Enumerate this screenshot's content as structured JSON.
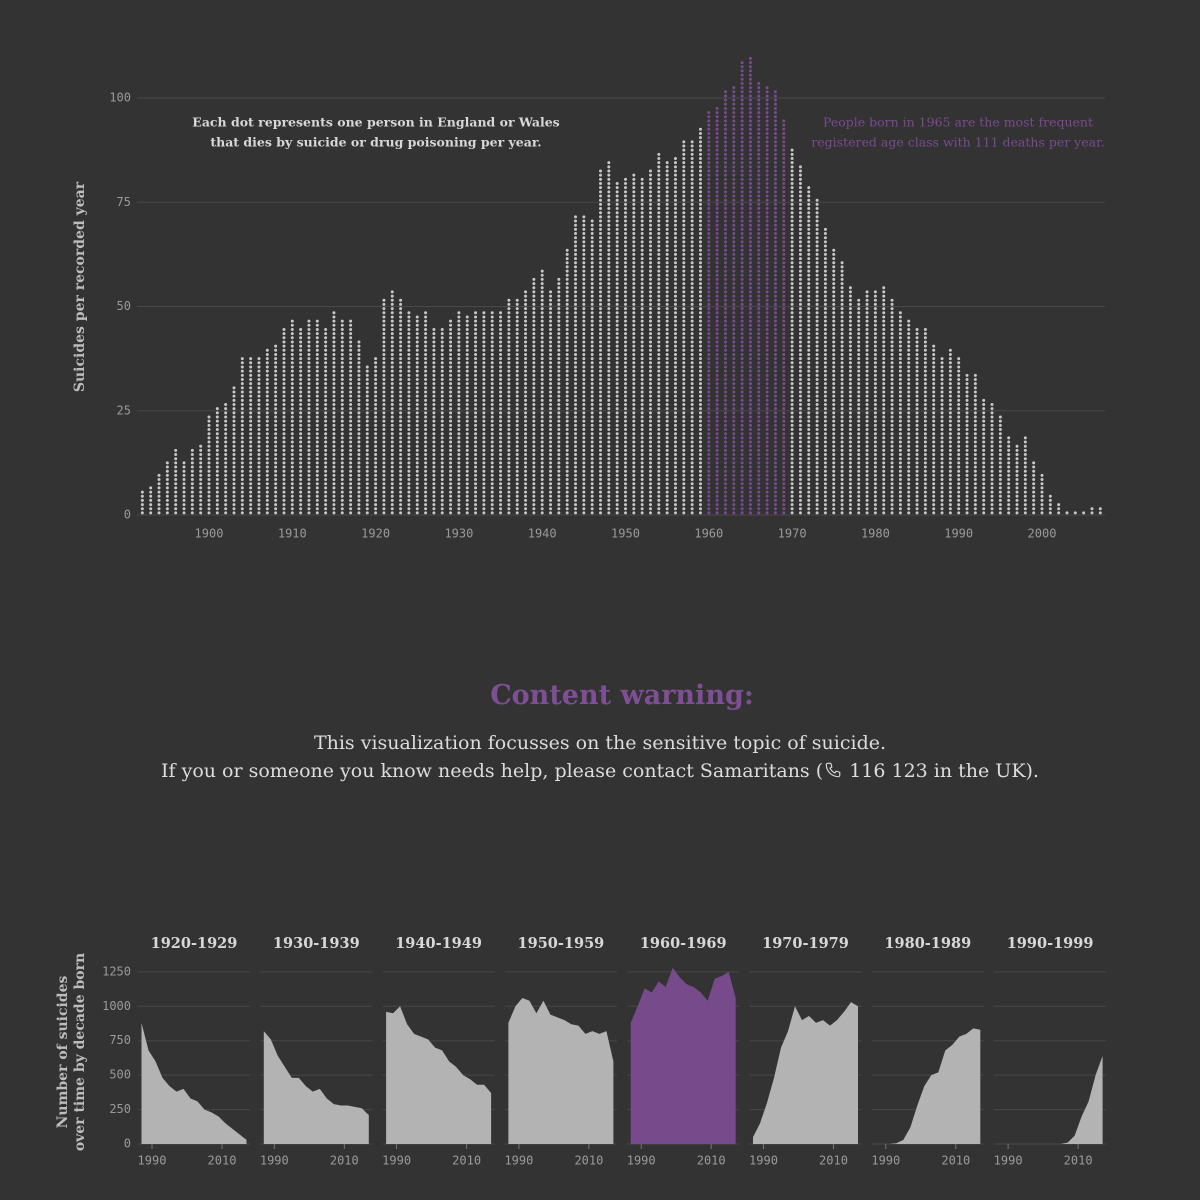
{
  "chart_data": [
    {
      "type": "dots",
      "ylabel": "Suicides per recorded year",
      "annotation_left": [
        "Each dot represents one person in England or Wales",
        "that dies by suicide or drug poisoning per year."
      ],
      "annotation_right": [
        "People born in 1965 are the most frequent",
        "registered age class with 111 deaths per year."
      ],
      "color": "#c8c8c8",
      "highlight": {
        "from": 1960,
        "to": 1969,
        "color": "#7a4a8e"
      },
      "x": [
        1892,
        1893,
        1894,
        1895,
        1896,
        1897,
        1898,
        1899,
        1900,
        1901,
        1902,
        1903,
        1904,
        1905,
        1906,
        1907,
        1908,
        1909,
        1910,
        1911,
        1912,
        1913,
        1914,
        1915,
        1916,
        1917,
        1918,
        1919,
        1920,
        1921,
        1922,
        1923,
        1924,
        1925,
        1926,
        1927,
        1928,
        1929,
        1930,
        1931,
        1932,
        1933,
        1934,
        1935,
        1936,
        1937,
        1938,
        1939,
        1940,
        1941,
        1942,
        1943,
        1944,
        1945,
        1946,
        1947,
        1948,
        1949,
        1950,
        1951,
        1952,
        1953,
        1954,
        1955,
        1956,
        1957,
        1958,
        1959,
        1960,
        1961,
        1962,
        1963,
        1964,
        1965,
        1966,
        1967,
        1968,
        1969,
        1970,
        1971,
        1972,
        1973,
        1974,
        1975,
        1976,
        1977,
        1978,
        1979,
        1980,
        1981,
        1982,
        1983,
        1984,
        1985,
        1986,
        1987,
        1988,
        1989,
        1990,
        1991,
        1992,
        1993,
        1994,
        1995,
        1996,
        1997,
        1998,
        1999,
        2000,
        2001,
        2002,
        2003,
        2004,
        2005,
        2006,
        2007
      ],
      "values": [
        7,
        8,
        10,
        14,
        16,
        14,
        16,
        18,
        24,
        26,
        28,
        31,
        38,
        38,
        38,
        40,
        42,
        45,
        47,
        46,
        48,
        48,
        46,
        50,
        48,
        48,
        43,
        37,
        38,
        52,
        54,
        52,
        50,
        49,
        50,
        46,
        46,
        47,
        50,
        49,
        50,
        50,
        50,
        50,
        52,
        52,
        55,
        58,
        59,
        55,
        58,
        65,
        73,
        73,
        72,
        84,
        86,
        81,
        82,
        83,
        82,
        84,
        88,
        86,
        87,
        91,
        91,
        94,
        98,
        99,
        102,
        104,
        109,
        111,
        105,
        104,
        102,
        95,
        89,
        85,
        80,
        77,
        70,
        65,
        61,
        56,
        53,
        54,
        54,
        56,
        52,
        50,
        48,
        45,
        45,
        42,
        39,
        40,
        38,
        35,
        35,
        29,
        28,
        25,
        20,
        18,
        19,
        14,
        10,
        6,
        3,
        1,
        1,
        1,
        2,
        2
      ],
      "xlim": [
        1890,
        2010
      ],
      "ylim": [
        0,
        112
      ],
      "xticks": [
        1900,
        1910,
        1920,
        1930,
        1940,
        1950,
        1960,
        1970,
        1980,
        1990,
        2000
      ],
      "yticks": [
        0,
        25,
        50,
        75,
        100
      ],
      "grid": true
    },
    {
      "type": "area",
      "ylabel": [
        "Number of suicides",
        "over time by decade born"
      ],
      "x": [
        1987,
        1989,
        1991,
        1993,
        1995,
        1997,
        1999,
        2001,
        2003,
        2005,
        2007,
        2009,
        2011,
        2013,
        2015,
        2017
      ],
      "series": [
        {
          "name": "1920-1929",
          "color": "#b3b3b3",
          "values": [
            880,
            680,
            600,
            480,
            420,
            380,
            400,
            330,
            310,
            250,
            230,
            200,
            150,
            110,
            70,
            30
          ]
        },
        {
          "name": "1930-1939",
          "color": "#b3b3b3",
          "values": [
            820,
            760,
            640,
            560,
            480,
            480,
            420,
            380,
            400,
            330,
            290,
            280,
            280,
            270,
            260,
            210
          ]
        },
        {
          "name": "1940-1949",
          "color": "#b3b3b3",
          "values": [
            960,
            950,
            1000,
            870,
            800,
            780,
            760,
            700,
            680,
            600,
            560,
            500,
            470,
            430,
            430,
            370
          ]
        },
        {
          "name": "1950-1959",
          "color": "#b3b3b3",
          "values": [
            880,
            1000,
            1060,
            1040,
            950,
            1040,
            940,
            920,
            900,
            870,
            860,
            800,
            820,
            800,
            820,
            600
          ]
        },
        {
          "name": "1960-1969",
          "color": "#774a8c",
          "values": [
            880,
            1000,
            1130,
            1100,
            1180,
            1140,
            1280,
            1210,
            1160,
            1140,
            1100,
            1040,
            1200,
            1220,
            1250,
            1060
          ]
        },
        {
          "name": "1970-1979",
          "color": "#b3b3b3",
          "values": [
            50,
            150,
            300,
            480,
            700,
            820,
            1000,
            900,
            930,
            880,
            900,
            860,
            900,
            960,
            1030,
            1000
          ]
        },
        {
          "name": "1980-1989",
          "color": "#b3b3b3",
          "values": [
            0,
            0,
            0,
            5,
            30,
            120,
            280,
            420,
            500,
            520,
            680,
            720,
            780,
            800,
            840,
            830
          ]
        },
        {
          "name": "1990-1999",
          "color": "#b3b3b3",
          "values": [
            0,
            0,
            0,
            0,
            0,
            0,
            0,
            0,
            0,
            0,
            10,
            60,
            200,
            310,
            500,
            640
          ]
        }
      ],
      "xlim": [
        1986,
        2018
      ],
      "ylim": [
        0,
        1300
      ],
      "xticks": [
        1990,
        2010
      ],
      "yticks": [
        0,
        250,
        500,
        750,
        1000,
        1250
      ],
      "grid": true
    }
  ],
  "content_warning": {
    "title": "Content warning:",
    "line1": "This visualization focusses on the sensitive topic of suicide.",
    "line2_start": "If you or someone you know needs help, please contact Samaritans (",
    "line2_end": "116 123 in the UK)."
  }
}
